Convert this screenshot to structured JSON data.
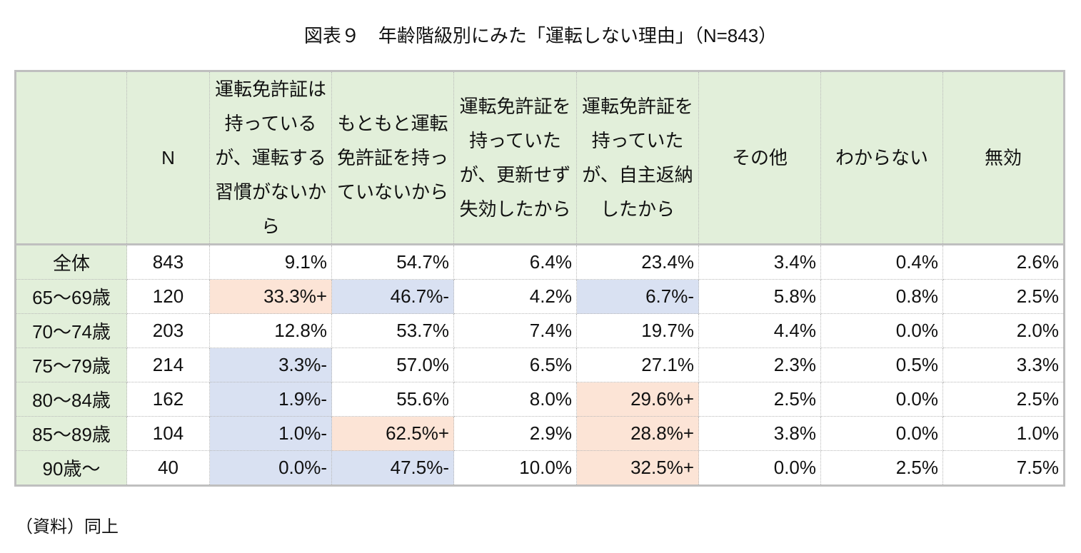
{
  "title": "図表９　年齢階級別にみた「運転しない理由」（N=843）",
  "colors": {
    "header_bg": "#e2efda",
    "plus_bg": "#fce4d6",
    "minus_bg": "#d9e1f2"
  },
  "table": {
    "columns": [
      "",
      "N",
      "運転免許証は持っているが、運転する習慣がないから",
      "もともと運転免許証を持っていないから",
      "運転免許証を持っていたが、更新せず失効したから",
      "運転免許証を持っていたが、自主返納したから",
      "その他",
      "わからない",
      "無効"
    ],
    "rows": [
      {
        "label": "全体",
        "n": "843",
        "values": [
          "9.1%",
          "54.7%",
          "6.4%",
          "23.4%",
          "3.4%",
          "0.4%",
          "2.6%"
        ]
      },
      {
        "label": "65～69歳",
        "n": "120",
        "values": [
          "33.3%+",
          "46.7%-",
          "4.2%",
          "6.7%-",
          "5.8%",
          "0.8%",
          "2.5%"
        ]
      },
      {
        "label": "70～74歳",
        "n": "203",
        "values": [
          "12.8%",
          "53.7%",
          "7.4%",
          "19.7%",
          "4.4%",
          "0.0%",
          "2.0%"
        ]
      },
      {
        "label": "75～79歳",
        "n": "214",
        "values": [
          "3.3%-",
          "57.0%",
          "6.5%",
          "27.1%",
          "2.3%",
          "0.5%",
          "3.3%"
        ]
      },
      {
        "label": "80～84歳",
        "n": "162",
        "values": [
          "1.9%-",
          "55.6%",
          "8.0%",
          "29.6%+",
          "2.5%",
          "0.0%",
          "2.5%"
        ]
      },
      {
        "label": "85～89歳",
        "n": "104",
        "values": [
          "1.0%-",
          "62.5%+",
          "2.9%",
          "28.8%+",
          "3.8%",
          "0.0%",
          "1.0%"
        ]
      },
      {
        "label": "90歳～",
        "n": "40",
        "values": [
          "0.0%-",
          "47.5%-",
          "10.0%",
          "32.5%+",
          "0.0%",
          "2.5%",
          "7.5%"
        ]
      }
    ]
  },
  "note": "（資料）同上"
}
